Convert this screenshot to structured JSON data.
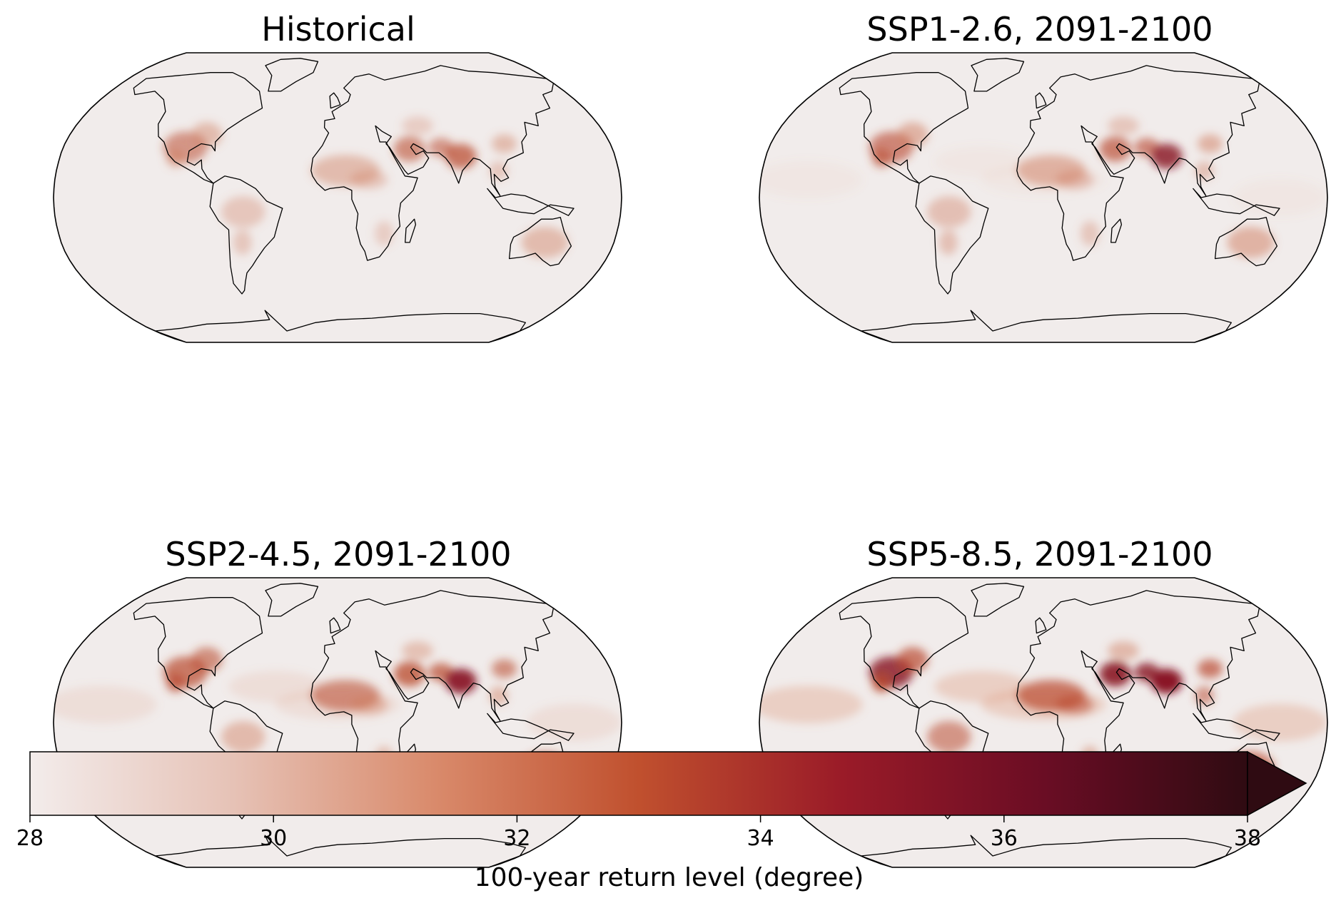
{
  "panels": [
    {
      "title": "Historical",
      "intensity": 0.35
    },
    {
      "title": "SSP1-2.6, 2091-2100",
      "intensity": 0.5
    },
    {
      "title": "SSP2-4.5, 2091-2100",
      "intensity": 0.65
    },
    {
      "title": "SSP5-8.5, 2091-2100",
      "intensity": 0.9
    }
  ],
  "colorbar": {
    "label": "100-year return level (degree)",
    "ticks": [
      "28",
      "30",
      "32",
      "34",
      "36",
      "38"
    ],
    "min": 28,
    "max": 38,
    "extend": "max",
    "colors": [
      "#f3eceb",
      "#e6c2b6",
      "#d98a6b",
      "#c0502e",
      "#9a1b28",
      "#6a0d24",
      "#2f0b12"
    ]
  }
}
